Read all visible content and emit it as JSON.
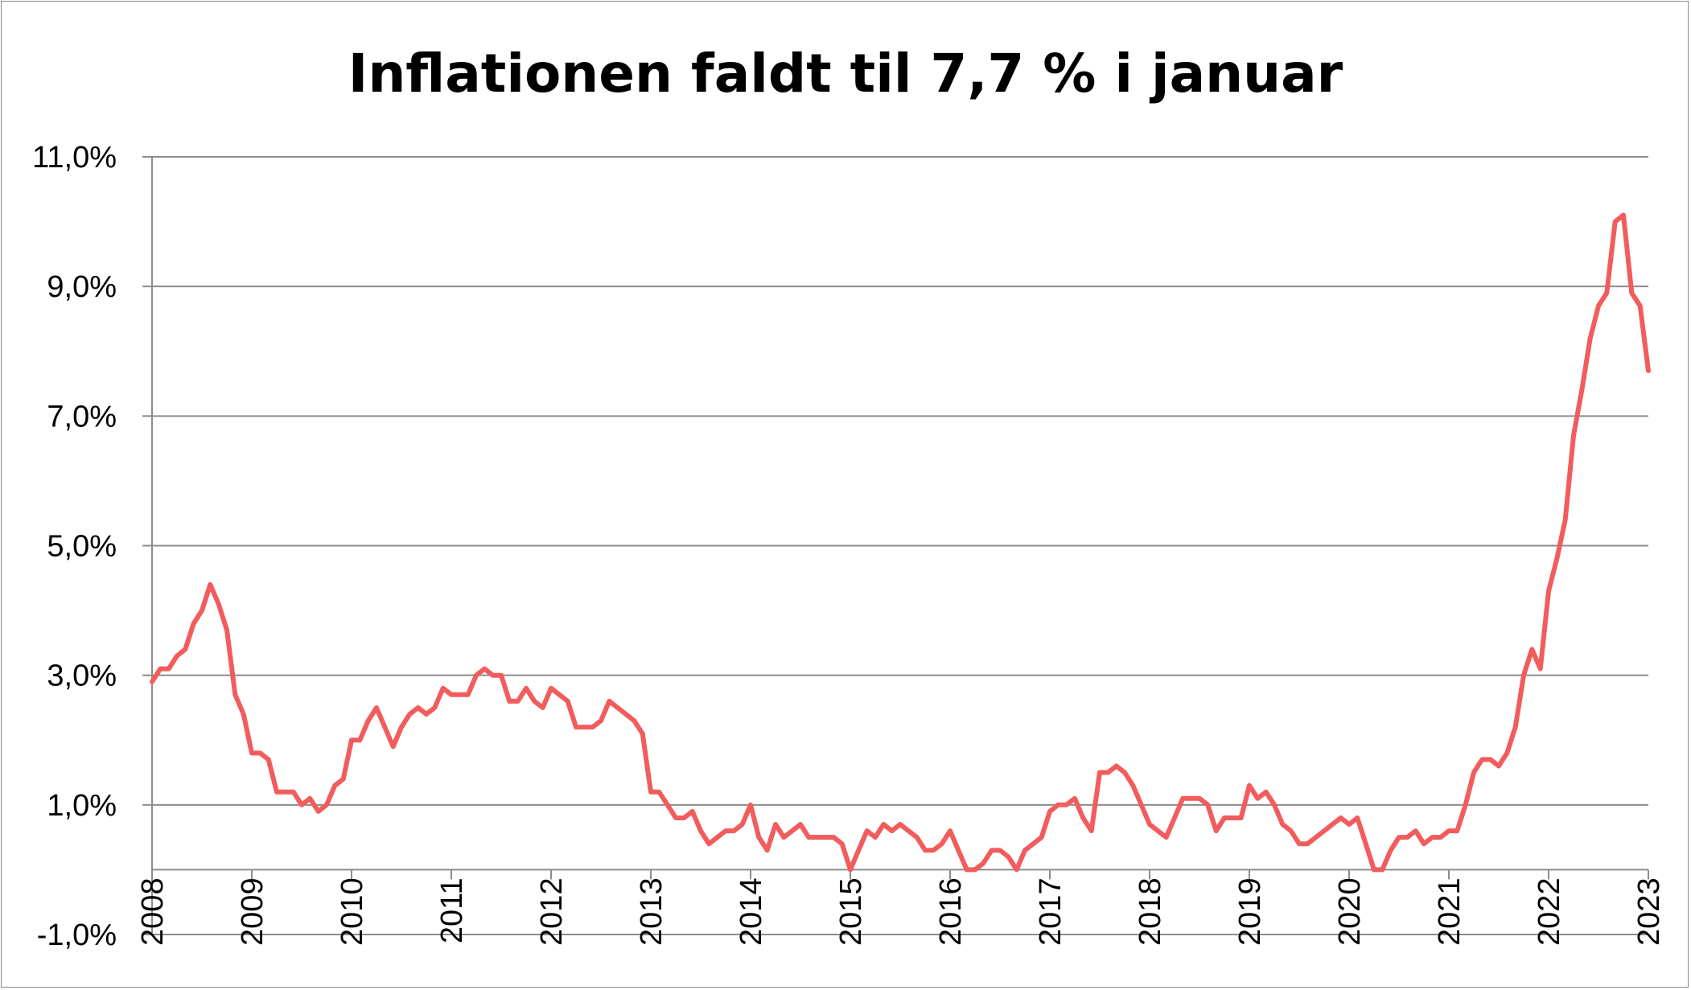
{
  "chart_data": {
    "type": "line",
    "title": "Inflationen faldt til 7,7 % i januar",
    "xlabel": "",
    "ylabel": "",
    "ylim": [
      -1.0,
      11.0
    ],
    "y_ticks": [
      "11,0%",
      "9,0%",
      "7,0%",
      "5,0%",
      "3,0%",
      "1,0%",
      "-1,0%"
    ],
    "y_tick_values": [
      11,
      9,
      7,
      5,
      3,
      1,
      -1
    ],
    "x_ticks": [
      "2008",
      "2009",
      "2010",
      "2011",
      "2012",
      "2013",
      "2014",
      "2015",
      "2016",
      "2017",
      "2018",
      "2019",
      "2020",
      "2021",
      "2022",
      "2023"
    ],
    "grid": "horizontal",
    "legend": "none",
    "line_color": "#f25c5c",
    "series": [
      {
        "start": "2008-01",
        "frequency": "monthly",
        "unit": "%",
        "values": [
          2.9,
          3.1,
          3.1,
          3.3,
          3.4,
          3.8,
          4.0,
          4.4,
          4.1,
          3.7,
          2.7,
          2.4,
          1.8,
          1.8,
          1.7,
          1.2,
          1.2,
          1.2,
          1.0,
          1.1,
          0.9,
          1.0,
          1.3,
          1.4,
          2.0,
          2.0,
          2.3,
          2.5,
          2.2,
          1.9,
          2.2,
          2.4,
          2.5,
          2.4,
          2.5,
          2.8,
          2.7,
          2.7,
          2.7,
          3.0,
          3.1,
          3.0,
          3.0,
          2.6,
          2.6,
          2.8,
          2.6,
          2.5,
          2.8,
          2.7,
          2.6,
          2.2,
          2.2,
          2.2,
          2.3,
          2.6,
          2.5,
          2.4,
          2.3,
          2.1,
          1.2,
          1.2,
          1.0,
          0.8,
          0.8,
          0.9,
          0.6,
          0.4,
          0.5,
          0.6,
          0.6,
          0.7,
          1.0,
          0.5,
          0.3,
          0.7,
          0.5,
          0.6,
          0.7,
          0.5,
          0.5,
          0.5,
          0.5,
          0.4,
          0.0,
          0.3,
          0.6,
          0.5,
          0.7,
          0.6,
          0.7,
          0.6,
          0.5,
          0.3,
          0.3,
          0.4,
          0.6,
          0.3,
          0.0,
          0.0,
          0.1,
          0.3,
          0.3,
          0.2,
          0.0,
          0.3,
          0.4,
          0.5,
          0.9,
          1.0,
          1.0,
          1.1,
          0.8,
          0.6,
          1.5,
          1.5,
          1.6,
          1.5,
          1.3,
          1.0,
          0.7,
          0.6,
          0.5,
          0.8,
          1.1,
          1.1,
          1.1,
          1.0,
          0.6,
          0.8,
          0.8,
          0.8,
          1.3,
          1.1,
          1.2,
          1.0,
          0.7,
          0.6,
          0.4,
          0.4,
          0.5,
          0.6,
          0.7,
          0.8,
          0.7,
          0.8,
          0.4,
          0.0,
          0.0,
          0.3,
          0.5,
          0.5,
          0.6,
          0.4,
          0.5,
          0.5,
          0.6,
          0.6,
          1.0,
          1.5,
          1.7,
          1.7,
          1.6,
          1.8,
          2.2,
          3.0,
          3.4,
          3.1,
          4.3,
          4.8,
          5.4,
          6.7,
          7.4,
          8.2,
          8.7,
          8.9,
          10.0,
          10.1,
          8.9,
          8.7,
          7.7
        ]
      }
    ]
  }
}
